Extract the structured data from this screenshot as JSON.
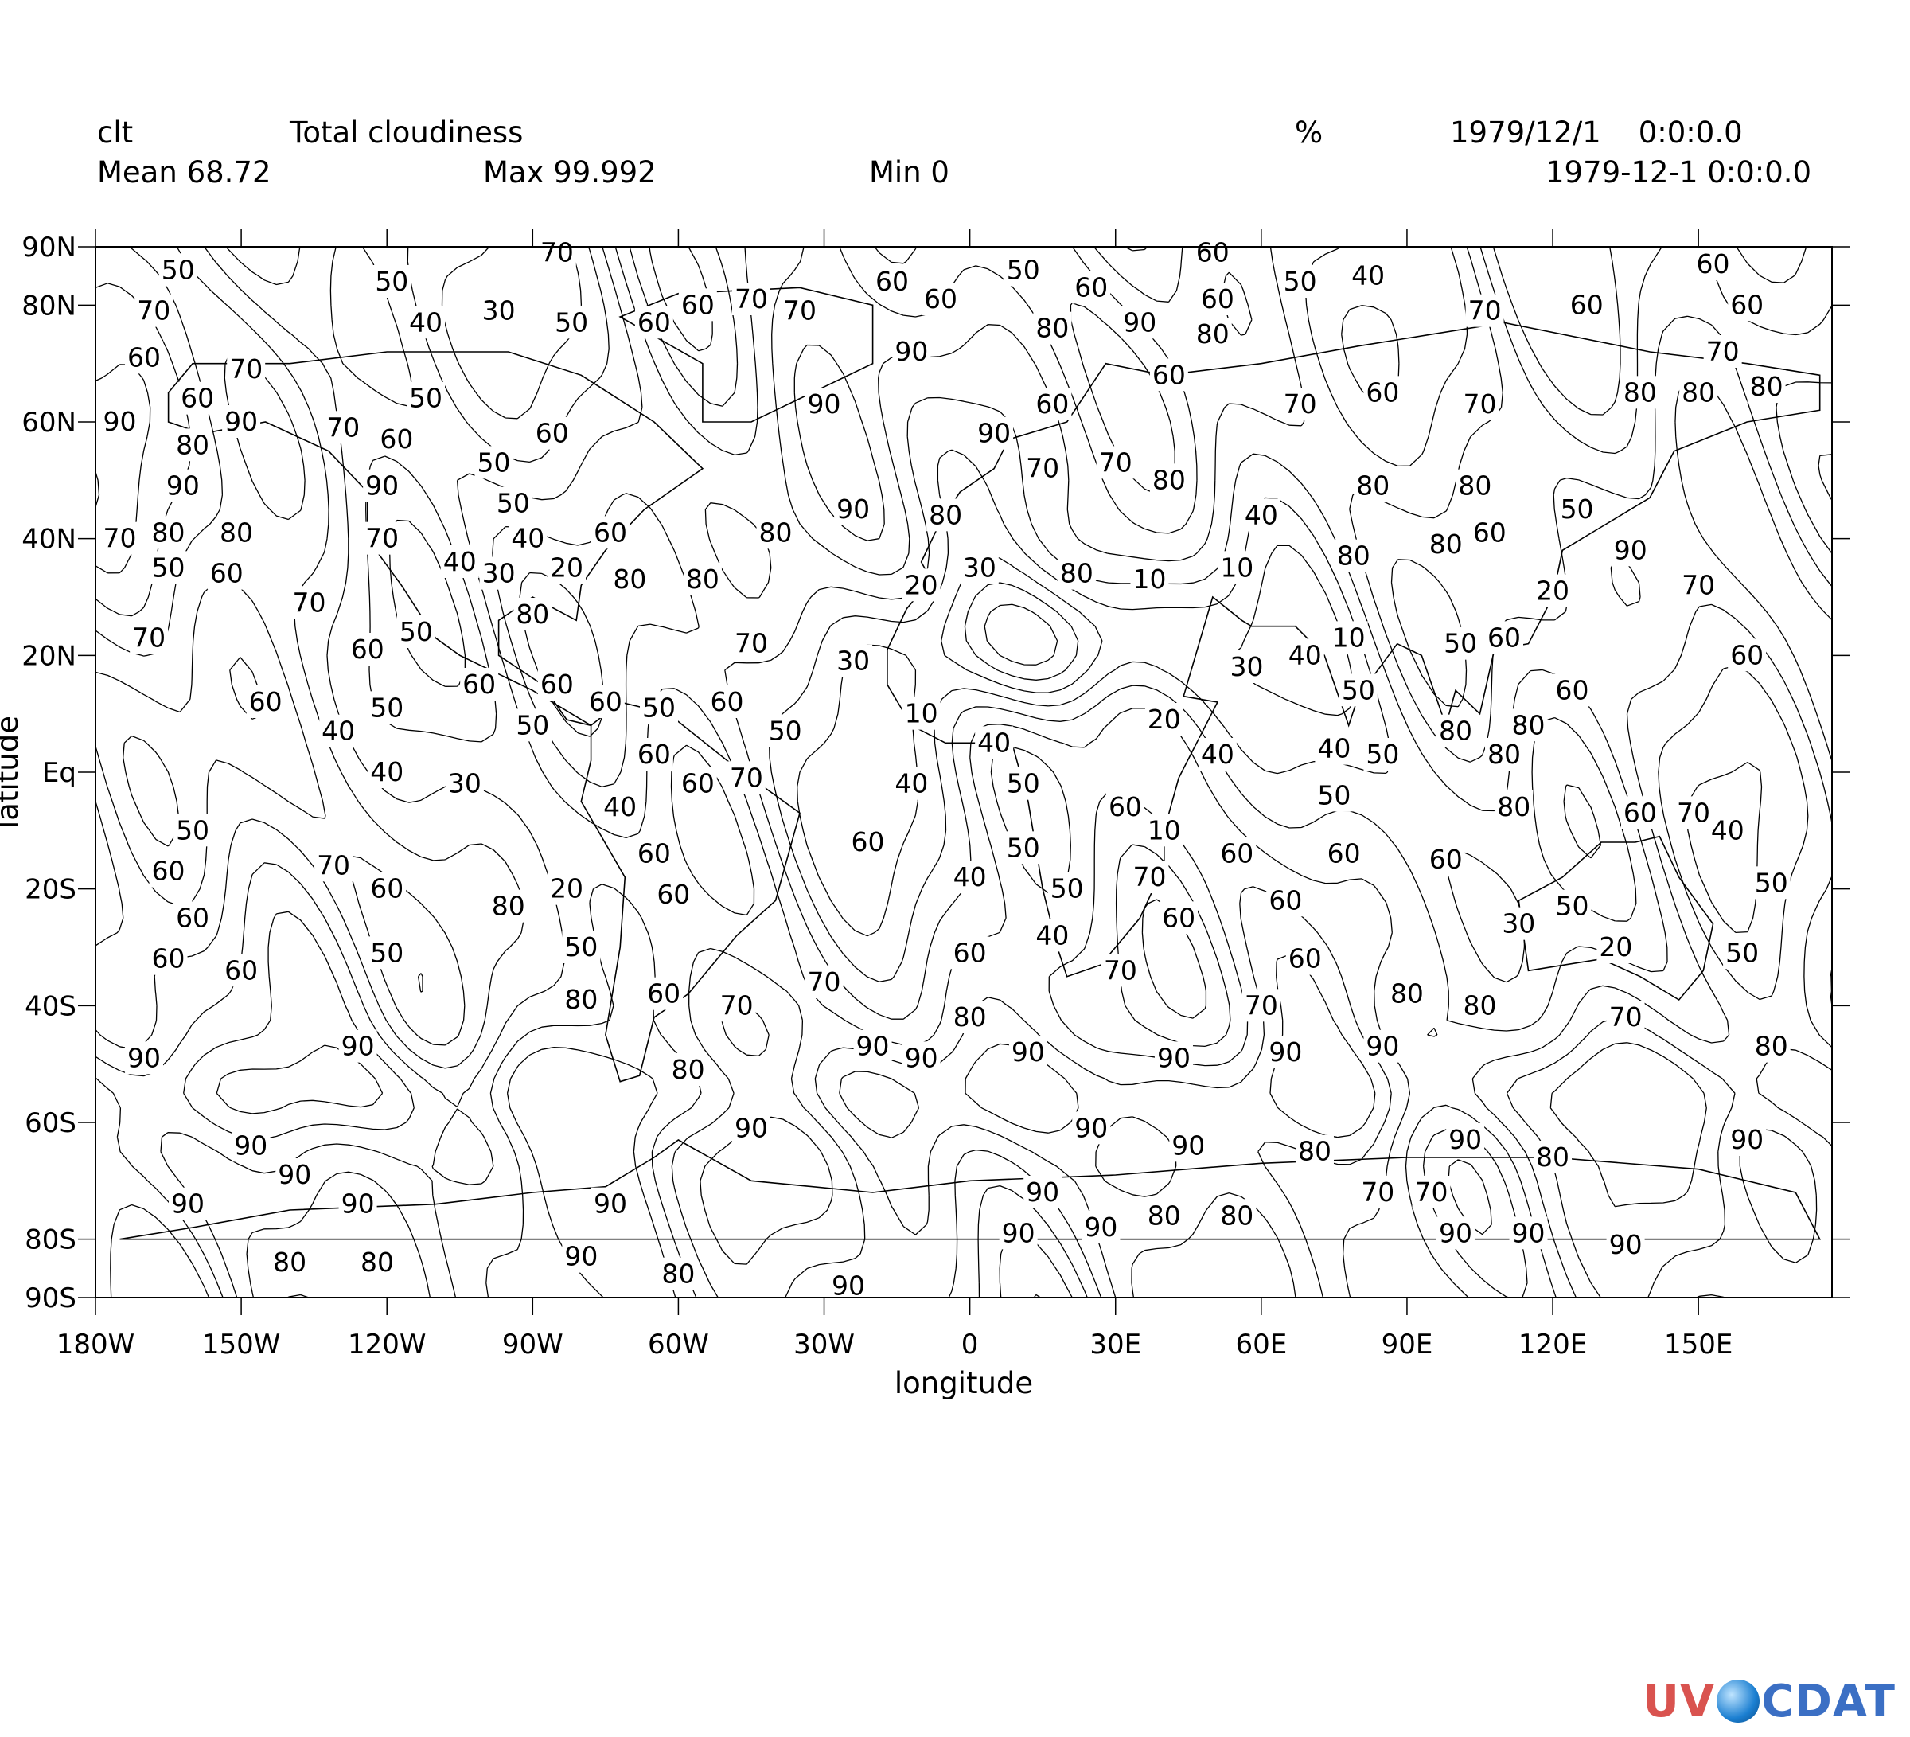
{
  "header": {
    "variable": "clt",
    "long_name": "Total cloudiness",
    "units": "%",
    "time_1": "1979/12/1    0:0:0.0",
    "time_2": "1979-12-1 0:0:0.0",
    "mean": "Mean 68.72",
    "max": "Max 99.992",
    "min": "Min 0"
  },
  "logo": {
    "part1": "UV",
    "part2": "CDAT"
  },
  "chart_data": {
    "type": "contour",
    "xlabel": "longitude",
    "ylabel": "latitude",
    "xlim": [
      -180,
      180
    ],
    "ylim": [
      -90,
      90
    ],
    "x_ticks": [
      {
        "value": -180,
        "label": "180W"
      },
      {
        "value": -150,
        "label": "150W"
      },
      {
        "value": -120,
        "label": "120W"
      },
      {
        "value": -90,
        "label": "90W"
      },
      {
        "value": -60,
        "label": "60W"
      },
      {
        "value": -30,
        "label": "30W"
      },
      {
        "value": 0,
        "label": "0"
      },
      {
        "value": 30,
        "label": "30E"
      },
      {
        "value": 60,
        "label": "60E"
      },
      {
        "value": 90,
        "label": "90E"
      },
      {
        "value": 120,
        "label": "120E"
      },
      {
        "value": 150,
        "label": "150E"
      }
    ],
    "y_ticks": [
      {
        "value": 90,
        "label": "90N"
      },
      {
        "value": 80,
        "label": "80N"
      },
      {
        "value": 60,
        "label": "60N"
      },
      {
        "value": 40,
        "label": "40N"
      },
      {
        "value": 20,
        "label": "20N"
      },
      {
        "value": 0,
        "label": "Eq"
      },
      {
        "value": -20,
        "label": "20S"
      },
      {
        "value": -40,
        "label": "40S"
      },
      {
        "value": -60,
        "label": "60S"
      },
      {
        "value": -80,
        "label": "80S"
      },
      {
        "value": -90,
        "label": "90S"
      }
    ],
    "contour_levels": [
      10,
      20,
      30,
      40,
      50,
      60,
      70,
      80,
      90
    ],
    "contour_labels": [
      {
        "v": 50,
        "lon": -163,
        "lat": 86
      },
      {
        "v": 50,
        "lon": -119,
        "lat": 84
      },
      {
        "v": 70,
        "lon": -85,
        "lat": 89
      },
      {
        "v": 60,
        "lon": -16,
        "lat": 84
      },
      {
        "v": 50,
        "lon": 11,
        "lat": 86
      },
      {
        "v": 60,
        "lon": 25,
        "lat": 83
      },
      {
        "v": 60,
        "lon": 50,
        "lat": 89
      },
      {
        "v": 50,
        "lon": 68,
        "lat": 84
      },
      {
        "v": 40,
        "lon": 82,
        "lat": 85
      },
      {
        "v": 60,
        "lon": 153,
        "lat": 87
      },
      {
        "v": 70,
        "lon": -168,
        "lat": 79
      },
      {
        "v": 40,
        "lon": -112,
        "lat": 77
      },
      {
        "v": 30,
        "lon": -97,
        "lat": 79
      },
      {
        "v": 50,
        "lon": -82,
        "lat": 77
      },
      {
        "v": 60,
        "lon": -65,
        "lat": 77
      },
      {
        "v": 60,
        "lon": -56,
        "lat": 80
      },
      {
        "v": 70,
        "lon": -45,
        "lat": 81
      },
      {
        "v": 70,
        "lon": -35,
        "lat": 79
      },
      {
        "v": 60,
        "lon": -6,
        "lat": 81
      },
      {
        "v": 60,
        "lon": 51,
        "lat": 81
      },
      {
        "v": 70,
        "lon": 106,
        "lat": 79
      },
      {
        "v": 60,
        "lon": 127,
        "lat": 80
      },
      {
        "v": 60,
        "lon": 160,
        "lat": 80
      },
      {
        "v": 60,
        "lon": -170,
        "lat": 71
      },
      {
        "v": 70,
        "lon": -149,
        "lat": 69
      },
      {
        "v": 80,
        "lon": 17,
        "lat": 76
      },
      {
        "v": 90,
        "lon": 35,
        "lat": 77
      },
      {
        "v": 80,
        "lon": 50,
        "lat": 75
      },
      {
        "v": 90,
        "lon": -12,
        "lat": 72
      },
      {
        "v": 60,
        "lon": 41,
        "lat": 68
      },
      {
        "v": 70,
        "lon": 155,
        "lat": 72
      },
      {
        "v": 60,
        "lon": -159,
        "lat": 64
      },
      {
        "v": 90,
        "lon": -150,
        "lat": 60
      },
      {
        "v": 50,
        "lon": -112,
        "lat": 64
      },
      {
        "v": 90,
        "lon": -30,
        "lat": 63
      },
      {
        "v": 60,
        "lon": 17,
        "lat": 63
      },
      {
        "v": 70,
        "lon": 68,
        "lat": 63
      },
      {
        "v": 60,
        "lon": 85,
        "lat": 65
      },
      {
        "v": 70,
        "lon": 105,
        "lat": 63
      },
      {
        "v": 80,
        "lon": 138,
        "lat": 65
      },
      {
        "v": 80,
        "lon": 150,
        "lat": 65
      },
      {
        "v": 80,
        "lon": 164,
        "lat": 66
      },
      {
        "v": 90,
        "lon": -175,
        "lat": 60
      },
      {
        "v": 80,
        "lon": -160,
        "lat": 56
      },
      {
        "v": 70,
        "lon": -129,
        "lat": 59
      },
      {
        "v": 60,
        "lon": -118,
        "lat": 57
      },
      {
        "v": 60,
        "lon": -86,
        "lat": 58
      },
      {
        "v": 90,
        "lon": 5,
        "lat": 58
      },
      {
        "v": 70,
        "lon": 15,
        "lat": 52
      },
      {
        "v": 70,
        "lon": 30,
        "lat": 53
      },
      {
        "v": 50,
        "lon": -98,
        "lat": 53
      },
      {
        "v": 90,
        "lon": -162,
        "lat": 49
      },
      {
        "v": 90,
        "lon": -121,
        "lat": 49
      },
      {
        "v": 80,
        "lon": 41,
        "lat": 50
      },
      {
        "v": 80,
        "lon": 83,
        "lat": 49
      },
      {
        "v": 80,
        "lon": 104,
        "lat": 49
      },
      {
        "v": 50,
        "lon": -94,
        "lat": 46
      },
      {
        "v": 90,
        "lon": -24,
        "lat": 45
      },
      {
        "v": 80,
        "lon": -5,
        "lat": 44
      },
      {
        "v": 40,
        "lon": 60,
        "lat": 44
      },
      {
        "v": 50,
        "lon": 125,
        "lat": 45
      },
      {
        "v": 90,
        "lon": 136,
        "lat": 38
      },
      {
        "v": 60,
        "lon": 107,
        "lat": 41
      },
      {
        "v": 80,
        "lon": 98,
        "lat": 39
      },
      {
        "v": 70,
        "lon": -175,
        "lat": 40
      },
      {
        "v": 80,
        "lon": -165,
        "lat": 41
      },
      {
        "v": 80,
        "lon": -151,
        "lat": 41
      },
      {
        "v": 70,
        "lon": -121,
        "lat": 40
      },
      {
        "v": 40,
        "lon": -91,
        "lat": 40
      },
      {
        "v": 60,
        "lon": -74,
        "lat": 41
      },
      {
        "v": 80,
        "lon": -40,
        "lat": 41
      },
      {
        "v": 50,
        "lon": -165,
        "lat": 35
      },
      {
        "v": 60,
        "lon": -153,
        "lat": 34
      },
      {
        "v": 40,
        "lon": -105,
        "lat": 36
      },
      {
        "v": 30,
        "lon": -97,
        "lat": 34
      },
      {
        "v": 20,
        "lon": -83,
        "lat": 35
      },
      {
        "v": 80,
        "lon": -70,
        "lat": 33
      },
      {
        "v": 80,
        "lon": -55,
        "lat": 33
      },
      {
        "v": 30,
        "lon": 2,
        "lat": 35
      },
      {
        "v": 80,
        "lon": 22,
        "lat": 34
      },
      {
        "v": 10,
        "lon": 37,
        "lat": 33
      },
      {
        "v": 10,
        "lon": 55,
        "lat": 35
      },
      {
        "v": 80,
        "lon": 79,
        "lat": 37
      },
      {
        "v": 20,
        "lon": 120,
        "lat": 31
      },
      {
        "v": 70,
        "lon": 150,
        "lat": 32
      },
      {
        "v": 70,
        "lon": -136,
        "lat": 29
      },
      {
        "v": 20,
        "lon": -10,
        "lat": 32
      },
      {
        "v": 70,
        "lon": -169,
        "lat": 23
      },
      {
        "v": 50,
        "lon": -114,
        "lat": 24
      },
      {
        "v": 80,
        "lon": -90,
        "lat": 27
      },
      {
        "v": 70,
        "lon": -45,
        "lat": 22
      },
      {
        "v": 10,
        "lon": 78,
        "lat": 23
      },
      {
        "v": 50,
        "lon": 101,
        "lat": 22
      },
      {
        "v": 60,
        "lon": 110,
        "lat": 23
      },
      {
        "v": 30,
        "lon": -24,
        "lat": 19
      },
      {
        "v": 60,
        "lon": -124,
        "lat": 21
      },
      {
        "v": 40,
        "lon": 69,
        "lat": 20
      },
      {
        "v": 30,
        "lon": 57,
        "lat": 18
      },
      {
        "v": 60,
        "lon": 160,
        "lat": 20
      },
      {
        "v": 60,
        "lon": -101,
        "lat": 15
      },
      {
        "v": 60,
        "lon": -85,
        "lat": 15
      },
      {
        "v": 60,
        "lon": -75,
        "lat": 12
      },
      {
        "v": 60,
        "lon": -50,
        "lat": 12
      },
      {
        "v": 50,
        "lon": -64,
        "lat": 11
      },
      {
        "v": 60,
        "lon": -145,
        "lat": 12
      },
      {
        "v": 50,
        "lon": -120,
        "lat": 11
      },
      {
        "v": 40,
        "lon": -130,
        "lat": 7
      },
      {
        "v": 50,
        "lon": -90,
        "lat": 8
      },
      {
        "v": 50,
        "lon": -38,
        "lat": 7
      },
      {
        "v": 10,
        "lon": -10,
        "lat": 10
      },
      {
        "v": 20,
        "lon": 40,
        "lat": 9
      },
      {
        "v": 50,
        "lon": 80,
        "lat": 14
      },
      {
        "v": 60,
        "lon": 124,
        "lat": 14
      },
      {
        "v": 80,
        "lon": 100,
        "lat": 7
      },
      {
        "v": 80,
        "lon": 115,
        "lat": 8
      },
      {
        "v": 40,
        "lon": 5,
        "lat": 5
      },
      {
        "v": 40,
        "lon": 51,
        "lat": 3
      },
      {
        "v": 40,
        "lon": 75,
        "lat": 4
      },
      {
        "v": 50,
        "lon": 85,
        "lat": 3
      },
      {
        "v": 80,
        "lon": 110,
        "lat": 3
      },
      {
        "v": 60,
        "lon": -65,
        "lat": 3
      },
      {
        "v": 40,
        "lon": -120,
        "lat": 0
      },
      {
        "v": 30,
        "lon": -104,
        "lat": -2
      },
      {
        "v": 60,
        "lon": -56,
        "lat": -2
      },
      {
        "v": 70,
        "lon": -46,
        "lat": -1
      },
      {
        "v": 40,
        "lon": -12,
        "lat": -2
      },
      {
        "v": 50,
        "lon": 11,
        "lat": -2
      },
      {
        "v": 40,
        "lon": -72,
        "lat": -6
      },
      {
        "v": 60,
        "lon": 32,
        "lat": -6
      },
      {
        "v": 50,
        "lon": 75,
        "lat": -4
      },
      {
        "v": 80,
        "lon": 112,
        "lat": -6
      },
      {
        "v": 60,
        "lon": 138,
        "lat": -7
      },
      {
        "v": 70,
        "lon": 149,
        "lat": -7
      },
      {
        "v": 10,
        "lon": 40,
        "lat": -10
      },
      {
        "v": 40,
        "lon": 156,
        "lat": -10
      },
      {
        "v": 50,
        "lon": -160,
        "lat": -10
      },
      {
        "v": 60,
        "lon": -65,
        "lat": -14
      },
      {
        "v": 60,
        "lon": -21,
        "lat": -12
      },
      {
        "v": 50,
        "lon": 11,
        "lat": -13
      },
      {
        "v": 60,
        "lon": 55,
        "lat": -14
      },
      {
        "v": 60,
        "lon": 77,
        "lat": -14
      },
      {
        "v": 60,
        "lon": 98,
        "lat": -15
      },
      {
        "v": 60,
        "lon": -165,
        "lat": -17
      },
      {
        "v": 70,
        "lon": -131,
        "lat": -16
      },
      {
        "v": 70,
        "lon": 37,
        "lat": -18
      },
      {
        "v": 40,
        "lon": 0,
        "lat": -18
      },
      {
        "v": 60,
        "lon": -120,
        "lat": -20
      },
      {
        "v": 20,
        "lon": -83,
        "lat": -20
      },
      {
        "v": 60,
        "lon": -61,
        "lat": -21
      },
      {
        "v": 50,
        "lon": 20,
        "lat": -20
      },
      {
        "v": 60,
        "lon": 65,
        "lat": -22
      },
      {
        "v": 50,
        "lon": 165,
        "lat": -19
      },
      {
        "v": 60,
        "lon": -160,
        "lat": -25
      },
      {
        "v": 80,
        "lon": -95,
        "lat": -23
      },
      {
        "v": 60,
        "lon": 43,
        "lat": -25
      },
      {
        "v": 50,
        "lon": 124,
        "lat": -23
      },
      {
        "v": 30,
        "lon": 113,
        "lat": -26
      },
      {
        "v": 20,
        "lon": 133,
        "lat": -30
      },
      {
        "v": 50,
        "lon": -120,
        "lat": -31
      },
      {
        "v": 50,
        "lon": -80,
        "lat": -30
      },
      {
        "v": 50,
        "lon": 159,
        "lat": -31
      },
      {
        "v": 60,
        "lon": -165,
        "lat": -32
      },
      {
        "v": 60,
        "lon": -150,
        "lat": -34
      },
      {
        "v": 60,
        "lon": 0,
        "lat": -31
      },
      {
        "v": 40,
        "lon": 17,
        "lat": -28
      },
      {
        "v": 70,
        "lon": 31,
        "lat": -34
      },
      {
        "v": 60,
        "lon": 69,
        "lat": -32
      },
      {
        "v": 80,
        "lon": -80,
        "lat": -39
      },
      {
        "v": 60,
        "lon": -63,
        "lat": -38
      },
      {
        "v": 70,
        "lon": -30,
        "lat": -36
      },
      {
        "v": 70,
        "lon": -48,
        "lat": -40
      },
      {
        "v": 80,
        "lon": 0,
        "lat": -42
      },
      {
        "v": 70,
        "lon": 60,
        "lat": -40
      },
      {
        "v": 80,
        "lon": 90,
        "lat": -38
      },
      {
        "v": 80,
        "lon": 105,
        "lat": -40
      },
      {
        "v": 70,
        "lon": 135,
        "lat": -42
      },
      {
        "v": 90,
        "lon": -170,
        "lat": -49
      },
      {
        "v": 90,
        "lon": -126,
        "lat": -47
      },
      {
        "v": 80,
        "lon": -58,
        "lat": -51
      },
      {
        "v": 90,
        "lon": -20,
        "lat": -47
      },
      {
        "v": 90,
        "lon": -10,
        "lat": -49
      },
      {
        "v": 90,
        "lon": 12,
        "lat": -48
      },
      {
        "v": 90,
        "lon": 42,
        "lat": -49
      },
      {
        "v": 90,
        "lon": 65,
        "lat": -48
      },
      {
        "v": 90,
        "lon": 85,
        "lat": -47
      },
      {
        "v": 80,
        "lon": 165,
        "lat": -47
      },
      {
        "v": 90,
        "lon": -45,
        "lat": -61
      },
      {
        "v": 90,
        "lon": 25,
        "lat": -61
      },
      {
        "v": 90,
        "lon": 45,
        "lat": -64
      },
      {
        "v": 80,
        "lon": 71,
        "lat": -65
      },
      {
        "v": 90,
        "lon": 102,
        "lat": -63
      },
      {
        "v": 80,
        "lon": 120,
        "lat": -66
      },
      {
        "v": 90,
        "lon": 160,
        "lat": -63
      },
      {
        "v": 90,
        "lon": -148,
        "lat": -64
      },
      {
        "v": 90,
        "lon": -139,
        "lat": -69
      },
      {
        "v": 90,
        "lon": -126,
        "lat": -74
      },
      {
        "v": 90,
        "lon": -161,
        "lat": -74
      },
      {
        "v": 90,
        "lon": -74,
        "lat": -74
      },
      {
        "v": 90,
        "lon": 15,
        "lat": -72
      },
      {
        "v": 70,
        "lon": 84,
        "lat": -72
      },
      {
        "v": 70,
        "lon": 95,
        "lat": -72
      },
      {
        "v": 80,
        "lon": 40,
        "lat": -76
      },
      {
        "v": 80,
        "lon": 55,
        "lat": -76
      },
      {
        "v": 90,
        "lon": 27,
        "lat": -78
      },
      {
        "v": 90,
        "lon": 10,
        "lat": -79
      },
      {
        "v": 90,
        "lon": 100,
        "lat": -79
      },
      {
        "v": 90,
        "lon": 115,
        "lat": -79
      },
      {
        "v": 90,
        "lon": 135,
        "lat": -81
      },
      {
        "v": 80,
        "lon": -140,
        "lat": -84
      },
      {
        "v": 80,
        "lon": -122,
        "lat": -84
      },
      {
        "v": 90,
        "lon": -80,
        "lat": -83
      },
      {
        "v": 80,
        "lon": -60,
        "lat": -86
      },
      {
        "v": 90,
        "lon": -25,
        "lat": -88
      }
    ]
  }
}
